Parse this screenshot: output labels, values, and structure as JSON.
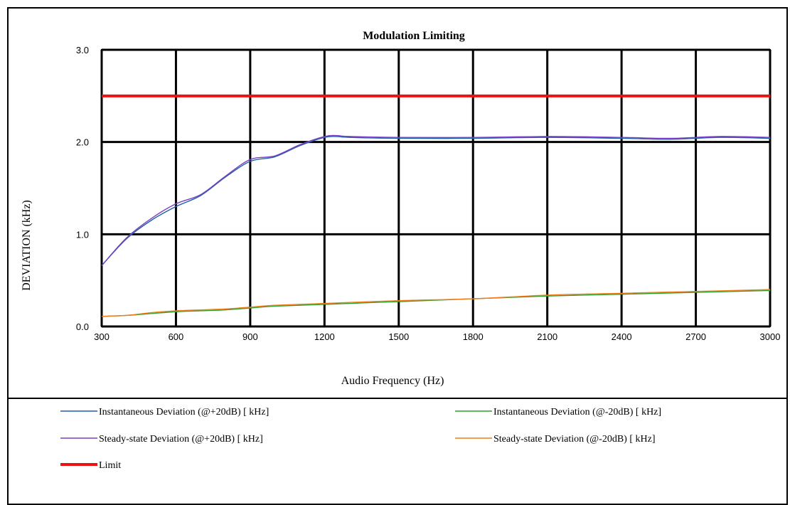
{
  "chart_data": {
    "type": "line",
    "title": "Modulation Limiting",
    "xlabel": "Audio Frequency (Hz)",
    "ylabel": "DEVIATION (kHz)",
    "xlim": [
      300,
      3000
    ],
    "ylim": [
      0.0,
      3.0
    ],
    "x_ticks": [
      "300",
      "600",
      "900",
      "1200",
      "1500",
      "1800",
      "2100",
      "2400",
      "2700",
      "3000"
    ],
    "y_ticks": [
      "0.0",
      "1.0",
      "2.0",
      "3.0"
    ],
    "grid": true,
    "legend_position": "bottom",
    "series": [
      {
        "name": "Instantaneous Deviation (@+20dB) [ kHz]",
        "color": "#1f5fa8",
        "x": [
          300,
          400,
          500,
          600,
          700,
          800,
          900,
          1000,
          1100,
          1200,
          1250,
          1300,
          1500,
          1800,
          2100,
          2400,
          2600,
          2800,
          3000
        ],
        "y": [
          0.66,
          0.95,
          1.15,
          1.3,
          1.42,
          1.62,
          1.79,
          1.84,
          1.96,
          2.05,
          2.06,
          2.05,
          2.04,
          2.04,
          2.05,
          2.04,
          2.03,
          2.05,
          2.04
        ]
      },
      {
        "name": "Instantaneous Deviation (@-20dB) [ kHz]",
        "color": "#2ca02c",
        "x": [
          300,
          400,
          500,
          600,
          700,
          800,
          900,
          1000,
          1200,
          1500,
          1800,
          2100,
          2400,
          2700,
          3000
        ],
        "y": [
          0.11,
          0.12,
          0.14,
          0.16,
          0.17,
          0.18,
          0.2,
          0.22,
          0.24,
          0.27,
          0.3,
          0.33,
          0.35,
          0.37,
          0.39
        ]
      },
      {
        "name": "Steady-state Deviation (@+20dB) [ kHz]",
        "color": "#7a3fc4",
        "x": [
          300,
          400,
          500,
          600,
          700,
          800,
          900,
          1000,
          1100,
          1200,
          1250,
          1300,
          1500,
          1800,
          2100,
          2400,
          2600,
          2800,
          3000
        ],
        "y": [
          0.66,
          0.96,
          1.17,
          1.33,
          1.43,
          1.63,
          1.81,
          1.85,
          1.97,
          2.06,
          2.07,
          2.06,
          2.05,
          2.05,
          2.06,
          2.05,
          2.04,
          2.06,
          2.05
        ]
      },
      {
        "name": "Steady-state Deviation (@-20dB) [ kHz]",
        "color": "#f07d1a",
        "x": [
          300,
          400,
          500,
          600,
          700,
          800,
          900,
          1000,
          1200,
          1500,
          1800,
          2100,
          2400,
          2700,
          3000
        ],
        "y": [
          0.11,
          0.12,
          0.15,
          0.17,
          0.18,
          0.19,
          0.21,
          0.23,
          0.25,
          0.28,
          0.3,
          0.34,
          0.36,
          0.38,
          0.4
        ]
      },
      {
        "name": "Limit",
        "color": "#ee1111",
        "x": [
          300,
          3000
        ],
        "y": [
          2.5,
          2.5
        ]
      }
    ]
  }
}
